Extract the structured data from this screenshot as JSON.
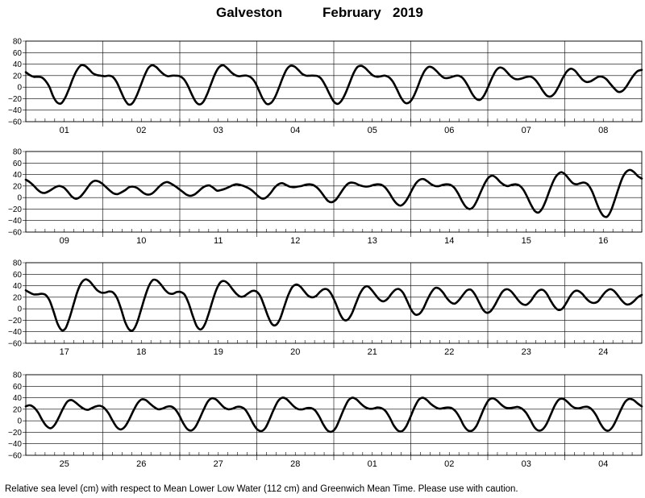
{
  "title": {
    "station": "Galveston",
    "month": "February",
    "year": "2019"
  },
  "footnote": "Relative sea level (cm) with respect to Mean Lower Low Water (112 cm) and Greenwich Mean Time. Please use with caution.",
  "chart_data": {
    "type": "line",
    "xlabel": "",
    "ylabel": "",
    "grid": true,
    "ylim": [
      -60,
      80
    ],
    "yticks": [
      -60,
      -40,
      -20,
      0,
      20,
      40,
      60,
      80
    ],
    "ytick_labels": [
      "−60",
      "−40",
      "−20",
      "0",
      "20",
      "40",
      "60",
      "80"
    ],
    "hours_per_day": 24,
    "hourly_minor_ticks": true,
    "panels": [
      {
        "day_labels": [
          "01",
          "02",
          "03",
          "04",
          "05",
          "06",
          "07",
          "08"
        ],
        "values": [
          26,
          21,
          18,
          18,
          17,
          11,
          0,
          -17,
          -27,
          -28,
          -18,
          -2,
          16,
          30,
          38,
          37,
          31,
          24,
          21,
          20,
          19,
          20,
          18,
          9,
          -6,
          -21,
          -30,
          -28,
          -16,
          1,
          19,
          33,
          38,
          35,
          28,
          22,
          19,
          20,
          20,
          19,
          14,
          3,
          -12,
          -25,
          -30,
          -25,
          -11,
          7,
          24,
          35,
          38,
          33,
          26,
          21,
          19,
          20,
          20,
          17,
          9,
          -5,
          -20,
          -29,
          -28,
          -19,
          -3,
          15,
          30,
          37,
          36,
          30,
          23,
          20,
          20,
          20,
          19,
          13,
          1,
          -13,
          -25,
          -29,
          -23,
          -10,
          7,
          24,
          35,
          37,
          33,
          26,
          20,
          18,
          19,
          20,
          17,
          9,
          -4,
          -18,
          -27,
          -27,
          -19,
          -4,
          14,
          28,
          35,
          34,
          28,
          21,
          16,
          16,
          18,
          20,
          19,
          13,
          2,
          -11,
          -20,
          -22,
          -15,
          -1,
          15,
          28,
          34,
          32,
          25,
          18,
          14,
          14,
          16,
          18,
          18,
          13,
          4,
          -7,
          -15,
          -16,
          -10,
          2,
          16,
          27,
          32,
          29,
          21,
          13,
          9,
          10,
          14,
          18,
          18,
          14,
          6,
          -2,
          -8,
          -7,
          0,
          11,
          21,
          28,
          30
        ],
        "overshoots": [],
        "comments": "Feb 01-08, hourly relative sea level in cm (unit printed in footnote)"
      },
      {
        "day_labels": [
          "09",
          "10",
          "11",
          "12",
          "13",
          "14",
          "15",
          "16"
        ],
        "values": [
          31,
          27,
          21,
          14,
          9,
          8,
          11,
          15,
          19,
          20,
          17,
          10,
          2,
          -2,
          0,
          7,
          16,
          25,
          29,
          28,
          24,
          18,
          12,
          7,
          6,
          9,
          13,
          18,
          19,
          17,
          12,
          7,
          5,
          7,
          13,
          20,
          25,
          27,
          24,
          20,
          15,
          10,
          5,
          3,
          5,
          10,
          16,
          20,
          21,
          17,
          12,
          13,
          15,
          18,
          21,
          23,
          22,
          20,
          17,
          13,
          7,
          1,
          -2,
          1,
          8,
          17,
          23,
          25,
          22,
          19,
          18,
          19,
          20,
          22,
          23,
          22,
          18,
          11,
          2,
          -6,
          -8,
          -4,
          5,
          15,
          23,
          26,
          25,
          22,
          20,
          19,
          20,
          22,
          23,
          22,
          17,
          8,
          -3,
          -11,
          -14,
          -9,
          1,
          14,
          25,
          31,
          32,
          28,
          23,
          20,
          20,
          22,
          23,
          22,
          17,
          7,
          -6,
          -16,
          -20,
          -16,
          -4,
          11,
          25,
          35,
          38,
          34,
          27,
          22,
          20,
          22,
          23,
          21,
          14,
          2,
          -12,
          -23,
          -26,
          -19,
          -4,
          14,
          30,
          40,
          44,
          40,
          32,
          25,
          23,
          25,
          26,
          22,
          11,
          -6,
          -22,
          -32,
          -33,
          -22,
          -3,
          17,
          35,
          45,
          48,
          44,
          37,
          33
        ]
      },
      {
        "day_labels": [
          "17",
          "18",
          "19",
          "20",
          "21",
          "22",
          "23",
          "24"
        ],
        "values": [
          32,
          28,
          25,
          25,
          26,
          24,
          14,
          -5,
          -26,
          -37,
          -34,
          -16,
          7,
          30,
          45,
          51,
          48,
          40,
          32,
          28,
          28,
          30,
          28,
          18,
          -1,
          -23,
          -36,
          -37,
          -24,
          -2,
          21,
          40,
          50,
          49,
          42,
          33,
          27,
          26,
          29,
          29,
          24,
          9,
          -12,
          -30,
          -36,
          -28,
          -9,
          14,
          34,
          46,
          48,
          43,
          34,
          26,
          21,
          22,
          27,
          31,
          30,
          22,
          5,
          -14,
          -27,
          -28,
          -17,
          3,
          23,
          37,
          42,
          39,
          31,
          23,
          20,
          22,
          29,
          34,
          33,
          24,
          9,
          -8,
          -19,
          -19,
          -9,
          8,
          25,
          36,
          39,
          33,
          24,
          16,
          13,
          17,
          26,
          33,
          34,
          27,
          13,
          -2,
          -10,
          -9,
          0,
          15,
          28,
          36,
          35,
          28,
          18,
          11,
          9,
          15,
          24,
          32,
          33,
          25,
          12,
          -1,
          -7,
          -4,
          6,
          19,
          30,
          34,
          31,
          23,
          14,
          8,
          7,
          13,
          23,
          31,
          33,
          27,
          15,
          4,
          -2,
          0,
          10,
          22,
          30,
          31,
          26,
          18,
          12,
          10,
          13,
          22,
          30,
          34,
          31,
          23,
          14,
          8,
          8,
          13,
          20,
          24
        ],
        "overshoots": [
          {
            "peak": -28,
            "to": -37,
            "overshoot": -9,
            "dt": "1/6"
          },
          {
            "peak": 48,
            "to": 51,
            "overshoot": 3,
            "dt": "1/6"
          }
        ]
      },
      {
        "day_labels": [
          "25",
          "26",
          "27",
          "28",
          "01",
          "02",
          "03",
          "04"
        ],
        "values": [
          25,
          27,
          23,
          14,
          1,
          -9,
          -13,
          -7,
          6,
          21,
          33,
          36,
          32,
          26,
          21,
          19,
          22,
          25,
          26,
          22,
          13,
          0,
          -11,
          -15,
          -10,
          2,
          17,
          30,
          37,
          36,
          30,
          24,
          20,
          21,
          24,
          25,
          21,
          11,
          -3,
          -14,
          -17,
          -11,
          3,
          19,
          33,
          39,
          37,
          30,
          23,
          20,
          21,
          24,
          24,
          20,
          9,
          -5,
          -15,
          -18,
          -12,
          3,
          20,
          34,
          40,
          38,
          31,
          24,
          20,
          20,
          22,
          22,
          18,
          7,
          -7,
          -17,
          -19,
          -12,
          4,
          21,
          35,
          40,
          37,
          30,
          24,
          21,
          21,
          23,
          22,
          17,
          6,
          -8,
          -17,
          -18,
          -10,
          6,
          23,
          36,
          40,
          36,
          29,
          24,
          21,
          22,
          23,
          22,
          16,
          5,
          -9,
          -17,
          -17,
          -9,
          7,
          24,
          36,
          39,
          35,
          28,
          23,
          22,
          23,
          24,
          21,
          14,
          2,
          -11,
          -17,
          -15,
          -5,
          11,
          27,
          37,
          38,
          33,
          26,
          22,
          22,
          24,
          24,
          19,
          9,
          -5,
          -15,
          -17,
          -10,
          4,
          20,
          33,
          38,
          36,
          30,
          25
        ]
      }
    ]
  }
}
